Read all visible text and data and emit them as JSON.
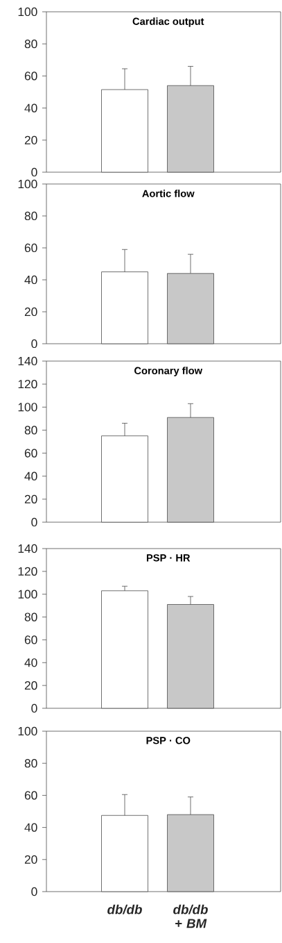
{
  "chart_data": [
    {
      "type": "bar",
      "title": "Cardiac output",
      "values": [
        51.5,
        54
      ],
      "colors": [
        "#ffffff",
        "#c8c8c8"
      ],
      "errors": [
        [
          51.5,
          64.5
        ],
        [
          54,
          66
        ]
      ],
      "ylim": [
        0,
        100
      ],
      "yticks": [
        0,
        20,
        40,
        60,
        80,
        100
      ],
      "tick_labels": "y"
    },
    {
      "type": "bar",
      "title": "Aortic flow",
      "values": [
        45,
        44
      ],
      "colors": [
        "#ffffff",
        "#c8c8c8"
      ],
      "errors": [
        [
          45,
          59
        ],
        [
          44,
          56
        ]
      ],
      "ylim": [
        0,
        100
      ],
      "yticks": [
        0,
        20,
        40,
        60,
        80,
        100
      ],
      "tick_labels": "y"
    },
    {
      "type": "bar",
      "title": "Coronary flow",
      "values": [
        75,
        91
      ],
      "colors": [
        "#ffffff",
        "#c8c8c8"
      ],
      "errors": [
        [
          75,
          86
        ],
        [
          91,
          103
        ]
      ],
      "ylim": [
        0,
        140
      ],
      "yticks": [
        0,
        20,
        40,
        60,
        80,
        100,
        120,
        140
      ],
      "tick_labels": "y"
    },
    {
      "type": "bar",
      "title": "PSP · HR",
      "values": [
        103,
        91
      ],
      "colors": [
        "#ffffff",
        "#c8c8c8"
      ],
      "errors": [
        [
          103,
          107
        ],
        [
          91,
          98
        ]
      ],
      "ylim": [
        0,
        140
      ],
      "yticks": [
        0,
        20,
        40,
        60,
        80,
        100,
        120,
        140
      ],
      "tick_labels": "y"
    },
    {
      "type": "bar",
      "title": "PSP · CO",
      "categories": [
        "db/db",
        "db/db + BM"
      ],
      "values": [
        47.5,
        48
      ],
      "colors": [
        "#ffffff",
        "#c8c8c8"
      ],
      "errors": [
        [
          47.5,
          60.5
        ],
        [
          48,
          59
        ]
      ],
      "ylim": [
        0,
        100
      ],
      "yticks": [
        0,
        20,
        40,
        60,
        80,
        100
      ]
    }
  ]
}
